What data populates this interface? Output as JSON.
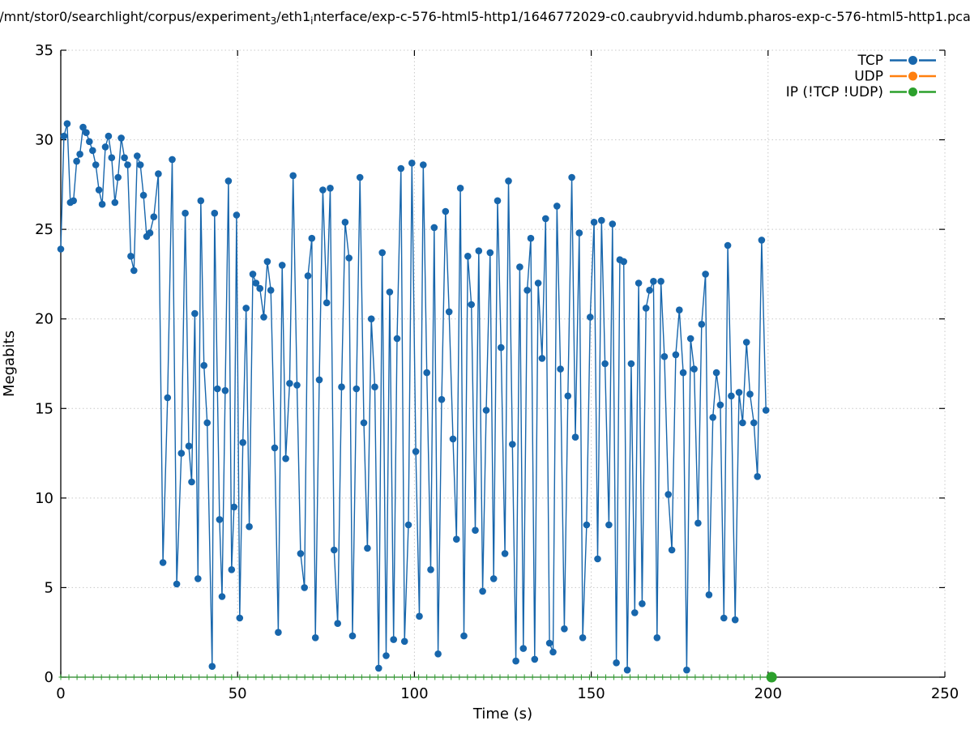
{
  "title": {
    "part1": "/mnt/stor0/searchlight/corpus/experiment",
    "sub1": "3",
    "part2": "/eth1",
    "sub2": "i",
    "part3": "nterface/exp-c-576-html5-http1/1646772029-c0.caubryvid.hdumb.pharos-exp-c-576-html5-http1.pca"
  },
  "chart_data": {
    "type": "line",
    "title_plain": "/mnt/stor0/searchlight/corpus/experiment_3/eth1_interface/exp-c-576-html5-http1/1646772029-c0.caubryvid.hdumb.pharos-exp-c-576-html5-http1.pca",
    "xlabel": "Time (s)",
    "ylabel": "Megabits",
    "xlim": [
      0,
      250
    ],
    "ylim": [
      0,
      35
    ],
    "x_ticks": [
      0,
      50,
      100,
      150,
      200,
      250
    ],
    "y_ticks": [
      0,
      5,
      10,
      15,
      20,
      25,
      30,
      35
    ],
    "grid": true,
    "grid_color": "#c8c8c8",
    "axis_color": "#000000",
    "legend_position": "top-right",
    "legend": [
      {
        "label": "TCP",
        "color": "#1766ac"
      },
      {
        "label": "UDP",
        "color": "#ff7f0e"
      },
      {
        "label": "IP (!TCP  !UDP)",
        "color": "#2ca02c"
      }
    ],
    "series": [
      {
        "name": "TCP",
        "color": "#1766ac",
        "marker": "circle",
        "points": [
          [
            0,
            23.9
          ],
          [
            0.9,
            30.2
          ],
          [
            1.8,
            30.9
          ],
          [
            2.7,
            26.5
          ],
          [
            3.6,
            26.6
          ],
          [
            4.5,
            28.8
          ],
          [
            5.4,
            29.2
          ],
          [
            6.3,
            30.7
          ],
          [
            7.2,
            30.4
          ],
          [
            8.1,
            29.9
          ],
          [
            9.0,
            29.4
          ],
          [
            9.9,
            28.6
          ],
          [
            10.8,
            27.2
          ],
          [
            11.7,
            26.4
          ],
          [
            12.6,
            29.6
          ],
          [
            13.5,
            30.2
          ],
          [
            14.4,
            29.0
          ],
          [
            15.3,
            26.5
          ],
          [
            16.2,
            27.9
          ],
          [
            17.1,
            30.1
          ],
          [
            18.0,
            29.0
          ],
          [
            18.9,
            28.6
          ],
          [
            19.8,
            23.5
          ],
          [
            20.7,
            22.7
          ],
          [
            21.6,
            29.1
          ],
          [
            22.5,
            28.6
          ],
          [
            23.4,
            26.9
          ],
          [
            24.3,
            24.6
          ],
          [
            25.2,
            24.8
          ],
          [
            26.3,
            25.7
          ],
          [
            27.6,
            28.1
          ],
          [
            28.9,
            6.4
          ],
          [
            30.2,
            15.6
          ],
          [
            31.5,
            28.9
          ],
          [
            32.8,
            5.2
          ],
          [
            34.1,
            12.5
          ],
          [
            35.2,
            25.9
          ],
          [
            36.2,
            12.9
          ],
          [
            37.0,
            10.9
          ],
          [
            37.9,
            20.3
          ],
          [
            38.8,
            5.5
          ],
          [
            39.6,
            26.6
          ],
          [
            40.5,
            17.4
          ],
          [
            41.4,
            14.2
          ],
          [
            42.8,
            0.6
          ],
          [
            43.5,
            25.9
          ],
          [
            44.3,
            16.1
          ],
          [
            44.9,
            8.8
          ],
          [
            45.6,
            4.5
          ],
          [
            46.5,
            16.0
          ],
          [
            47.4,
            27.7
          ],
          [
            48.3,
            6.0
          ],
          [
            49.0,
            9.5
          ],
          [
            49.7,
            25.8
          ],
          [
            50.6,
            3.3
          ],
          [
            51.5,
            13.1
          ],
          [
            52.4,
            20.6
          ],
          [
            53.3,
            8.4
          ],
          [
            54.3,
            22.5
          ],
          [
            55.2,
            22.0
          ],
          [
            56.3,
            21.7
          ],
          [
            57.4,
            20.1
          ],
          [
            58.4,
            23.2
          ],
          [
            59.4,
            21.6
          ],
          [
            60.5,
            12.8
          ],
          [
            61.5,
            2.5
          ],
          [
            62.6,
            23.0
          ],
          [
            63.6,
            12.2
          ],
          [
            64.7,
            16.4
          ],
          [
            65.7,
            28.0
          ],
          [
            66.8,
            16.3
          ],
          [
            67.8,
            6.9
          ],
          [
            68.9,
            5.0
          ],
          [
            69.9,
            22.4
          ],
          [
            71.0,
            24.5
          ],
          [
            72.0,
            2.2
          ],
          [
            73.1,
            16.6
          ],
          [
            74.1,
            27.2
          ],
          [
            75.2,
            20.9
          ],
          [
            76.2,
            27.3
          ],
          [
            77.3,
            7.1
          ],
          [
            78.3,
            3.0
          ],
          [
            79.4,
            16.2
          ],
          [
            80.4,
            25.4
          ],
          [
            81.5,
            23.4
          ],
          [
            82.5,
            2.3
          ],
          [
            83.6,
            16.1
          ],
          [
            84.6,
            27.9
          ],
          [
            85.7,
            14.2
          ],
          [
            86.7,
            7.2
          ],
          [
            87.8,
            20.0
          ],
          [
            88.8,
            16.2
          ],
          [
            89.9,
            0.5
          ],
          [
            90.9,
            23.7
          ],
          [
            92.0,
            1.2
          ],
          [
            93.0,
            21.5
          ],
          [
            94.1,
            2.1
          ],
          [
            95.1,
            18.9
          ],
          [
            96.2,
            28.4
          ],
          [
            97.2,
            2.0
          ],
          [
            98.3,
            8.5
          ],
          [
            99.3,
            28.7
          ],
          [
            100.4,
            12.6
          ],
          [
            101.4,
            3.4
          ],
          [
            102.5,
            28.6
          ],
          [
            103.5,
            17.0
          ],
          [
            104.6,
            6.0
          ],
          [
            105.6,
            25.1
          ],
          [
            106.7,
            1.3
          ],
          [
            107.7,
            15.5
          ],
          [
            108.8,
            26.0
          ],
          [
            109.8,
            20.4
          ],
          [
            110.9,
            13.3
          ],
          [
            111.9,
            7.7
          ],
          [
            113.0,
            27.3
          ],
          [
            114.0,
            2.3
          ],
          [
            115.1,
            23.5
          ],
          [
            116.1,
            20.8
          ],
          [
            117.2,
            8.2
          ],
          [
            118.2,
            23.8
          ],
          [
            119.3,
            4.8
          ],
          [
            120.3,
            14.9
          ],
          [
            121.4,
            23.7
          ],
          [
            122.4,
            5.5
          ],
          [
            123.5,
            26.6
          ],
          [
            124.5,
            18.4
          ],
          [
            125.6,
            6.9
          ],
          [
            126.6,
            27.7
          ],
          [
            127.7,
            13.0
          ],
          [
            128.7,
            0.9
          ],
          [
            129.8,
            22.9
          ],
          [
            130.8,
            1.6
          ],
          [
            131.9,
            21.6
          ],
          [
            132.9,
            24.5
          ],
          [
            134.0,
            1.0
          ],
          [
            135.0,
            22.0
          ],
          [
            136.1,
            17.8
          ],
          [
            137.1,
            25.6
          ],
          [
            138.2,
            1.9
          ],
          [
            139.2,
            1.4
          ],
          [
            140.3,
            26.3
          ],
          [
            141.3,
            17.2
          ],
          [
            142.4,
            2.7
          ],
          [
            143.4,
            15.7
          ],
          [
            144.5,
            27.9
          ],
          [
            145.5,
            13.4
          ],
          [
            146.6,
            24.8
          ],
          [
            147.6,
            2.2
          ],
          [
            148.7,
            8.5
          ],
          [
            149.7,
            20.1
          ],
          [
            150.8,
            25.4
          ],
          [
            151.8,
            6.6
          ],
          [
            152.9,
            25.5
          ],
          [
            153.9,
            17.5
          ],
          [
            155.0,
            8.5
          ],
          [
            156.0,
            25.3
          ],
          [
            157.1,
            0.8
          ],
          [
            158.1,
            23.3
          ],
          [
            159.2,
            23.2
          ],
          [
            160.2,
            0.4
          ],
          [
            161.3,
            17.5
          ],
          [
            162.3,
            3.6
          ],
          [
            163.4,
            22.0
          ],
          [
            164.4,
            4.1
          ],
          [
            165.5,
            20.6
          ],
          [
            166.5,
            21.6
          ],
          [
            167.6,
            22.1
          ],
          [
            168.6,
            2.2
          ],
          [
            169.7,
            22.1
          ],
          [
            170.7,
            17.9
          ],
          [
            171.8,
            10.2
          ],
          [
            172.8,
            7.1
          ],
          [
            173.9,
            18.0
          ],
          [
            174.9,
            20.5
          ],
          [
            176.0,
            17.0
          ],
          [
            177.0,
            0.4
          ],
          [
            178.1,
            18.9
          ],
          [
            179.1,
            17.2
          ],
          [
            180.2,
            8.6
          ],
          [
            181.2,
            19.7
          ],
          [
            182.3,
            22.5
          ],
          [
            183.3,
            4.6
          ],
          [
            184.4,
            14.5
          ],
          [
            185.4,
            17.0
          ],
          [
            186.5,
            15.2
          ],
          [
            187.5,
            3.3
          ],
          [
            188.6,
            24.1
          ],
          [
            189.6,
            15.7
          ],
          [
            190.7,
            3.2
          ],
          [
            191.8,
            15.9
          ],
          [
            192.8,
            14.2
          ],
          [
            193.9,
            18.7
          ],
          [
            194.9,
            15.8
          ],
          [
            196.0,
            14.2
          ],
          [
            197.0,
            11.2
          ],
          [
            198.2,
            24.4
          ],
          [
            199.4,
            14.9
          ]
        ]
      },
      {
        "name": "UDP",
        "color": "#ff7f0e",
        "constant_value": 0,
        "t_start": 0,
        "t_end": 201,
        "note": "flat at 0, hidden beneath IP series"
      },
      {
        "name": "IP (!TCP  !UDP)",
        "color": "#2ca02c",
        "constant_value": 0,
        "t_start": 0,
        "t_end": 201,
        "marker_interval_s": 2.3,
        "end_marker": "large-dot"
      }
    ]
  }
}
